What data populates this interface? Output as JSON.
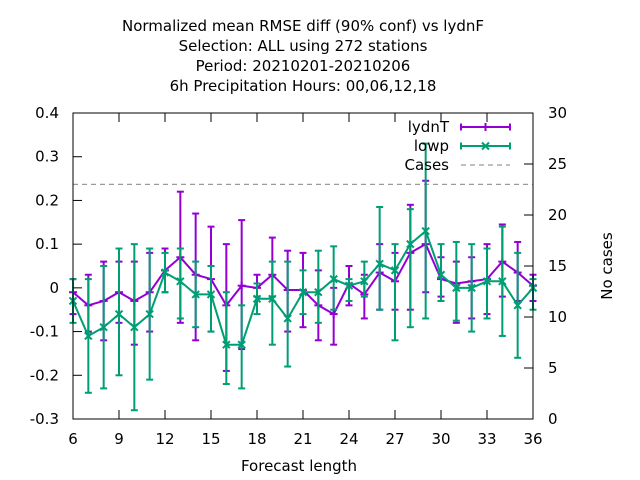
{
  "chart_data": {
    "type": "line",
    "title_lines": [
      "Normalized mean RMSE diff (90% conf) vs lydnF",
      "Selection: ALL using   272 stations",
      "Period: 20210201-20210206",
      "6h Precipitation   Hours:  00,06,12,18"
    ],
    "xlabel": "Forecast length",
    "ylabel_right": "No cases",
    "xlim": [
      6,
      36
    ],
    "ylim": [
      -0.3,
      0.4
    ],
    "y2lim": [
      0,
      30
    ],
    "xticks": [
      6,
      9,
      12,
      15,
      18,
      21,
      24,
      27,
      30,
      33,
      36
    ],
    "xtick_labels": [
      "6",
      "9",
      "12",
      "15",
      "18",
      "21",
      "24",
      "27",
      "30",
      "33",
      "36"
    ],
    "yticks": [
      -0.3,
      -0.2,
      -0.1,
      0,
      0.1,
      0.2,
      0.3,
      0.4
    ],
    "ytick_labels": [
      "-0.3",
      "-0.2",
      "-0.1",
      "0",
      "0.1",
      "0.2",
      "0.3",
      "0.4"
    ],
    "y2ticks": [
      0,
      5,
      10,
      15,
      20,
      25,
      30
    ],
    "y2tick_labels": [
      "0",
      "5",
      "10",
      "15",
      "20",
      "25",
      "30"
    ],
    "legend_position": "top-right",
    "x": [
      6,
      7,
      8,
      9,
      10,
      11,
      12,
      13,
      14,
      15,
      16,
      17,
      18,
      19,
      20,
      21,
      22,
      23,
      24,
      25,
      26,
      27,
      28,
      29,
      30,
      31,
      32,
      33,
      34,
      35,
      36
    ],
    "series": [
      {
        "name": "lydnT",
        "color": "#9400d3",
        "values": [
          -0.01,
          -0.04,
          -0.03,
          -0.01,
          -0.03,
          -0.01,
          0.04,
          0.07,
          0.03,
          0.02,
          -0.04,
          0.005,
          0.0,
          0.03,
          -0.005,
          -0.005,
          -0.04,
          -0.06,
          0.01,
          -0.015,
          0.035,
          0.015,
          0.08,
          0.1,
          0.02,
          0.01,
          0.015,
          0.02,
          0.06,
          0.035,
          0.005
        ],
        "low": [
          -0.06,
          -0.1,
          -0.12,
          -0.08,
          -0.13,
          -0.1,
          -0.01,
          -0.08,
          -0.12,
          -0.1,
          -0.19,
          -0.14,
          -0.02,
          -0.02,
          -0.1,
          -0.09,
          -0.12,
          -0.13,
          -0.04,
          -0.07,
          -0.05,
          -0.05,
          -0.05,
          -0.01,
          -0.02,
          -0.08,
          -0.07,
          -0.06,
          -0.02,
          -0.03,
          -0.03
        ],
        "high": [
          0.02,
          0.03,
          0.06,
          0.06,
          0.06,
          0.08,
          0.09,
          0.22,
          0.17,
          0.14,
          0.1,
          0.155,
          0.03,
          0.115,
          0.085,
          0.08,
          0.04,
          0.0,
          0.05,
          0.03,
          0.1,
          0.08,
          0.19,
          0.245,
          0.07,
          0.06,
          0.07,
          0.1,
          0.145,
          0.105,
          0.03
        ]
      },
      {
        "name": "lowp",
        "color": "#009e73",
        "values": [
          -0.03,
          -0.11,
          -0.09,
          -0.06,
          -0.09,
          -0.06,
          0.035,
          0.015,
          -0.015,
          -0.015,
          -0.13,
          -0.13,
          -0.025,
          -0.025,
          -0.07,
          -0.01,
          -0.01,
          0.02,
          0.005,
          0.015,
          0.055,
          0.04,
          0.1,
          0.13,
          0.03,
          0.0,
          0.0,
          0.015,
          0.015,
          -0.04,
          0.0
        ],
        "low": [
          -0.08,
          -0.24,
          -0.23,
          -0.2,
          -0.28,
          -0.21,
          -0.01,
          -0.07,
          -0.09,
          -0.1,
          -0.22,
          -0.23,
          -0.06,
          -0.13,
          -0.18,
          -0.06,
          -0.08,
          -0.05,
          -0.03,
          -0.02,
          -0.05,
          -0.12,
          -0.09,
          -0.07,
          -0.03,
          -0.075,
          -0.1,
          -0.07,
          -0.11,
          -0.16,
          -0.05
        ],
        "high": [
          0.02,
          0.02,
          0.05,
          0.09,
          0.1,
          0.09,
          0.08,
          0.09,
          0.06,
          0.05,
          -0.01,
          -0.04,
          0.01,
          0.06,
          0.06,
          0.04,
          0.085,
          0.095,
          0.02,
          0.06,
          0.185,
          0.1,
          0.18,
          0.33,
          0.1,
          0.105,
          0.1,
          0.09,
          0.14,
          0.08,
          0.02
        ]
      }
    ],
    "cases": {
      "name": "Cases",
      "color": "#9a9a9a",
      "value": 23
    }
  }
}
